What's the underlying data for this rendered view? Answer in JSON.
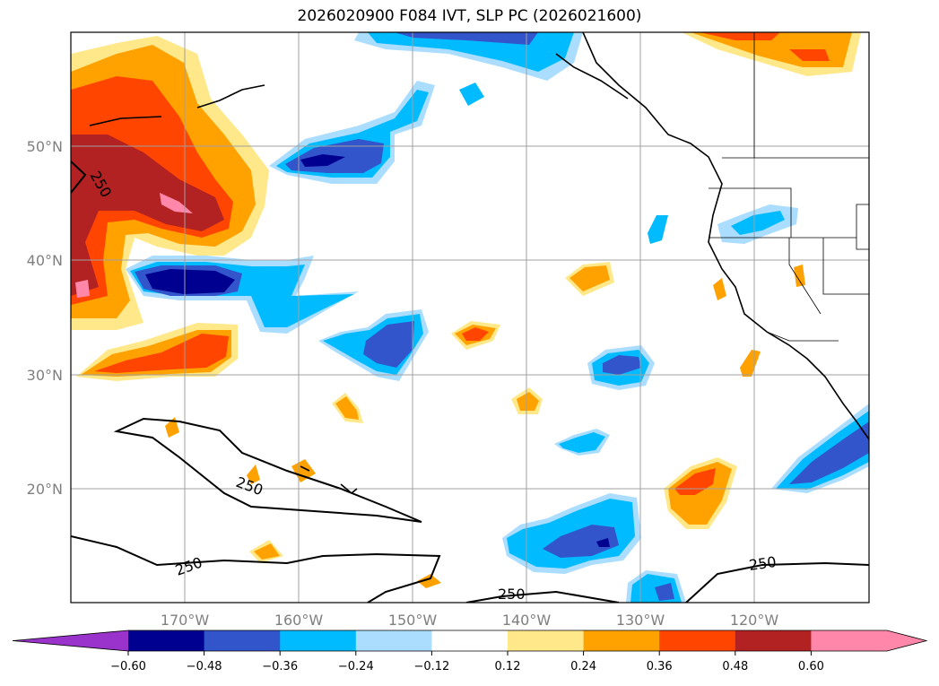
{
  "title": "2026020900 F084 IVT, SLP PC (2026021600)",
  "lon_labels": [
    "170°W",
    "160°W",
    "150°W",
    "140°W",
    "130°W",
    "120°W"
  ],
  "lat_labels": [
    "50°N",
    "40°N",
    "30°N",
    "20°N"
  ],
  "colorbar": {
    "ticks": [
      "−0.60",
      "−0.48",
      "−0.36",
      "−0.24",
      "−0.12",
      "0.12",
      "0.24",
      "0.36",
      "0.48",
      "0.60"
    ],
    "colors": [
      "#9933cc",
      "#000090",
      "#3355cc",
      "#00bbff",
      "#aaddff",
      "#ffffff",
      "#ffe88a",
      "#ffa200",
      "#ff4500",
      "#b22222",
      "#ff88aa",
      "#ff88aa"
    ]
  },
  "contour_labels": [
    "250",
    "250",
    "250",
    "250",
    "250"
  ],
  "colors": {
    "pos1": "#ffe88a",
    "pos2": "#ffa200",
    "pos3": "#ff4500",
    "pos4": "#b22222",
    "pos5": "#ff88aa",
    "neg1": "#aaddff",
    "neg2": "#00bbff",
    "neg3": "#3355cc",
    "neg4": "#000090"
  }
}
